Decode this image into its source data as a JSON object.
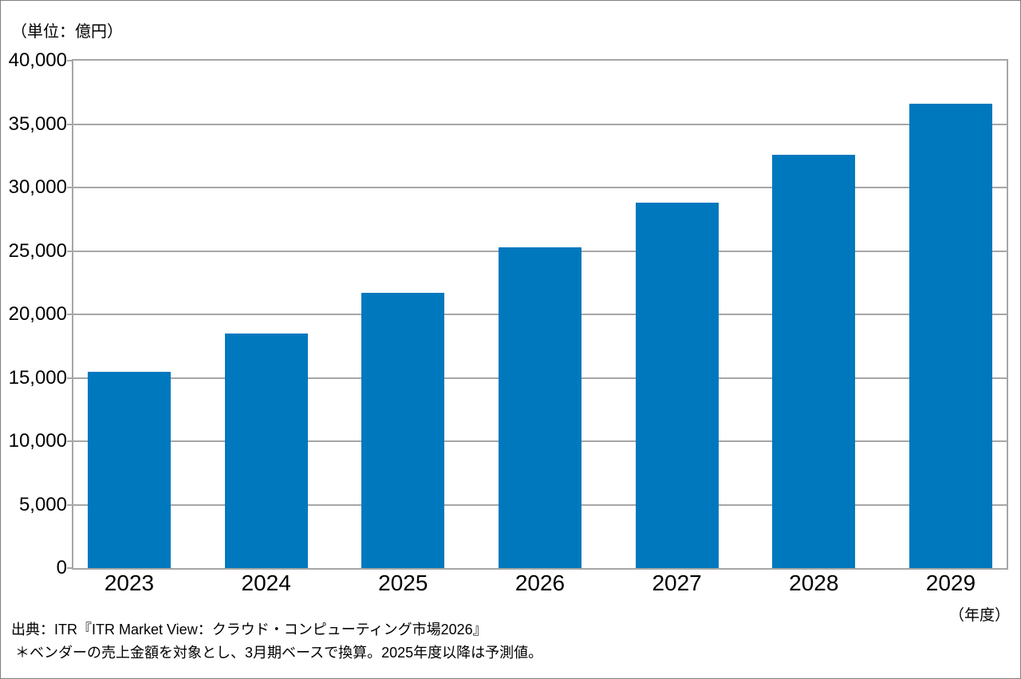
{
  "chart_data": {
    "type": "bar",
    "title": "",
    "unit_label": "（単位：億円）",
    "x_unit_label": "（年度）",
    "xlabel": "年度",
    "ylabel": "億円",
    "categories": [
      "2023",
      "2024",
      "2025",
      "2026",
      "2027",
      "2028",
      "2029"
    ],
    "values": [
      15500,
      18500,
      21700,
      25300,
      28800,
      32600,
      36600
    ],
    "ylim": [
      0,
      40000
    ],
    "y_tick_step": 5000,
    "y_tick_labels": [
      "0",
      "5,000",
      "10,000",
      "15,000",
      "20,000",
      "25,000",
      "30,000",
      "35,000",
      "40,000"
    ],
    "grid": true,
    "legend": "none",
    "bar_color": "#0078BE",
    "grid_color": "#a6a6a6"
  },
  "source": {
    "line1": "出典：ITR『ITR Market View：クラウド・コンピューティング市場2026』",
    "line2": "＊ベンダーの売上金額を対象とし、3月期ベースで換算。2025年度以降は予測値。"
  }
}
